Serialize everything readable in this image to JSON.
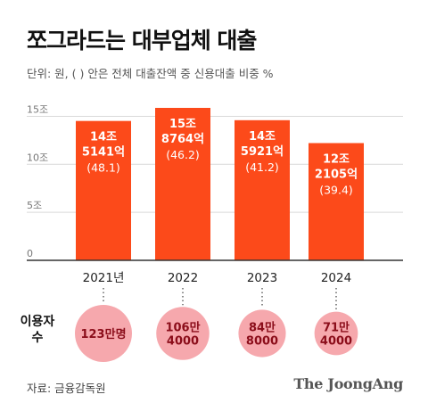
{
  "header": {
    "title": "쪼그라드는 대부업체 대출",
    "subtitle": "단위: 원, ( ) 안은 전체 대출잔액 중 신용대출 비중 %"
  },
  "users": {
    "label": "이용자\n수",
    "values": [
      "123만명",
      "106만\n4000",
      "84만\n8000",
      "71만\n4000"
    ],
    "counts": [
      1230000,
      1064000,
      848000,
      714000
    ]
  },
  "footer": {
    "source": "자료: 금융감독원",
    "logo": "The JoongAng"
  },
  "colors": {
    "bar": "#fc4a1a",
    "bar_text": "#ffffff",
    "circle": "#f6a8ad",
    "circle_text": "#8b0d1a",
    "axis": "#333333",
    "grid": "#d9d9d9"
  },
  "chart_data": {
    "type": "bar",
    "categories": [
      "2021년",
      "2022",
      "2023",
      "2024"
    ],
    "values": [
      14.5141,
      15.8764,
      14.5921,
      12.2105
    ],
    "value_labels_line1": [
      "14조",
      "15조",
      "14조",
      "12조"
    ],
    "value_labels_line2": [
      "5141억",
      "8764억",
      "5921억",
      "2105억"
    ],
    "shares": [
      "(48.1)",
      "(46.2)",
      "(41.2)",
      "(39.4)"
    ],
    "credit_share_pct": [
      48.1,
      46.2,
      41.2,
      39.4
    ],
    "y_ticks": [
      0,
      5,
      10,
      15
    ],
    "y_tick_labels": [
      "0",
      "5조",
      "10조",
      "15조"
    ],
    "ylim": [
      0,
      15.8764
    ],
    "grid": true
  }
}
